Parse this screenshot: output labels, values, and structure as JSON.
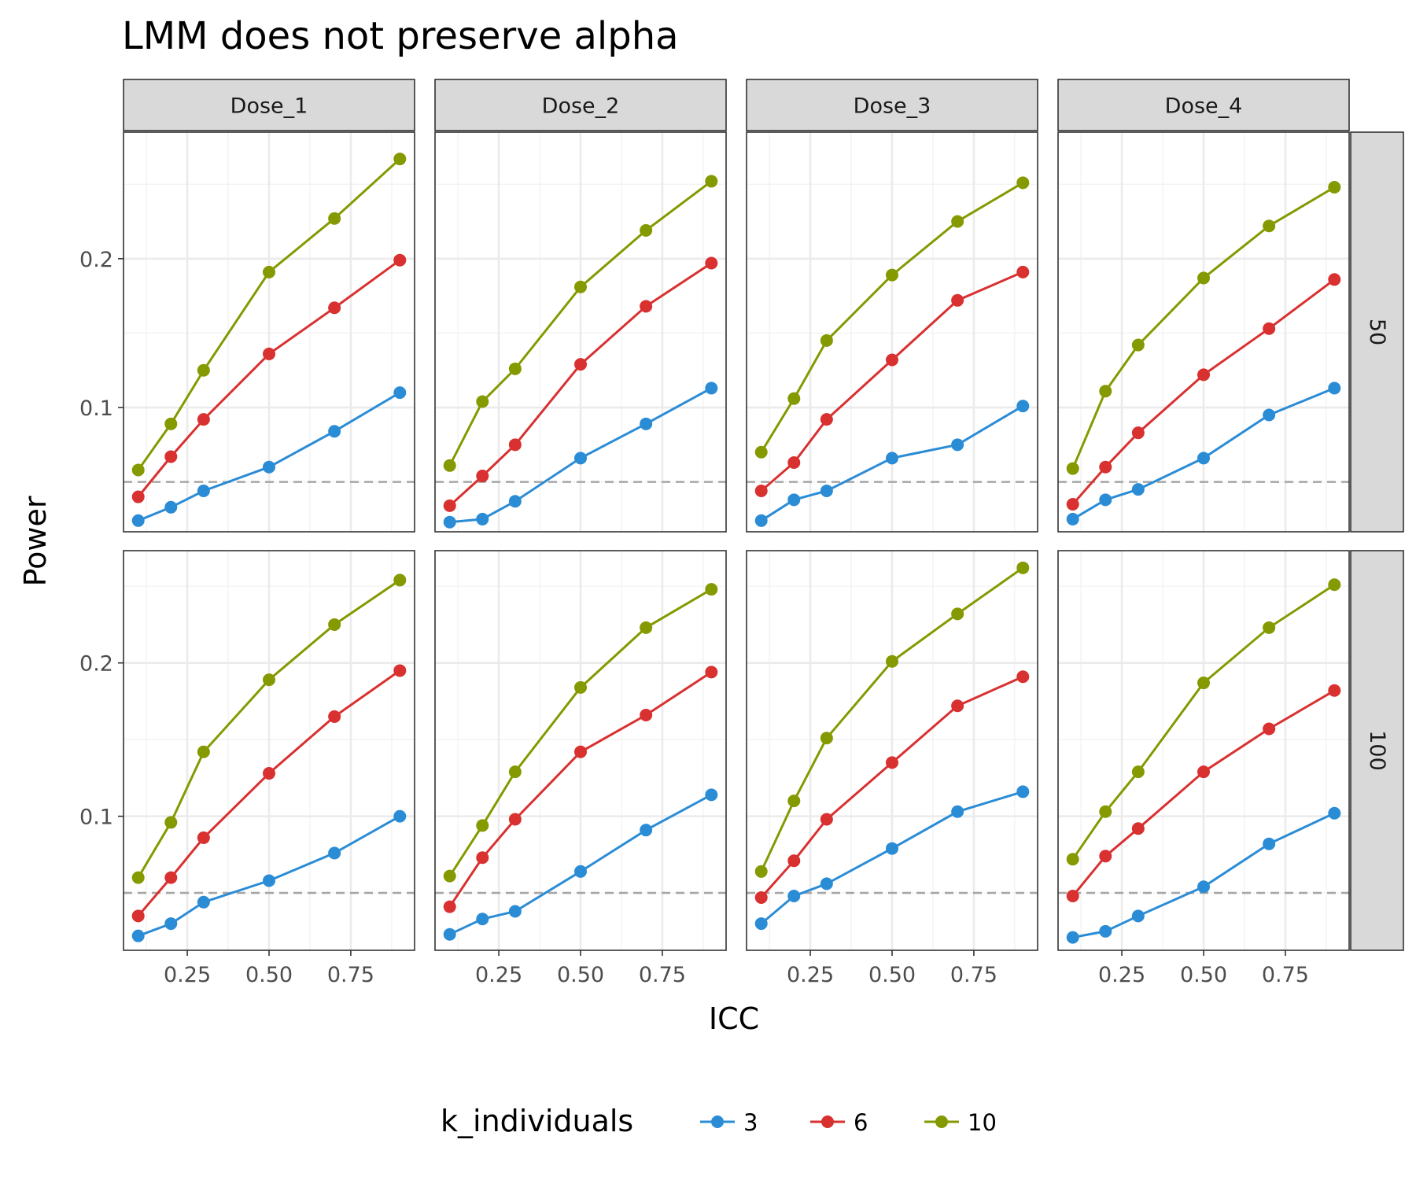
{
  "chart_data": {
    "type": "line",
    "title": "LMM does not preserve alpha",
    "xlabel": "ICC",
    "ylabel": "Power",
    "xlim": [
      0.055,
      0.945
    ],
    "x_ticks": [
      0.25,
      0.5,
      0.75
    ],
    "x_tick_labels": [
      "0.25",
      "0.50",
      "0.75"
    ],
    "y_ticks": [
      0.1,
      0.2
    ],
    "y_tick_labels": [
      "0.1",
      "0.2"
    ],
    "reference_line": {
      "y": 0.05,
      "style": "dashed",
      "color": "#a6a6a6"
    },
    "grid": true,
    "legend": {
      "title": "k_individuals",
      "position": "bottom",
      "entries": [
        "3",
        "6",
        "10"
      ],
      "colors": [
        "#2b8cd6",
        "#d93030",
        "#859900"
      ]
    },
    "x": [
      0.1,
      0.2,
      0.3,
      0.5,
      0.7,
      0.9
    ],
    "column_facets": [
      "Dose_1",
      "Dose_2",
      "Dose_3",
      "Dose_4"
    ],
    "row_facets": [
      "50",
      "100"
    ],
    "row_ylim": [
      [
        0.0165,
        0.285
      ],
      [
        0.0126,
        0.2732
      ]
    ],
    "panels": [
      {
        "row": "50",
        "col": "Dose_1",
        "series": [
          {
            "name": "3",
            "values": [
              0.024,
              0.033,
              0.044,
              0.06,
              0.084,
              0.11
            ]
          },
          {
            "name": "6",
            "values": [
              0.04,
              0.067,
              0.092,
              0.136,
              0.167,
              0.199
            ]
          },
          {
            "name": "10",
            "values": [
              0.058,
              0.089,
              0.125,
              0.191,
              0.227,
              0.267
            ]
          }
        ]
      },
      {
        "row": "50",
        "col": "Dose_2",
        "series": [
          {
            "name": "3",
            "values": [
              0.023,
              0.025,
              0.037,
              0.066,
              0.089,
              0.113
            ]
          },
          {
            "name": "6",
            "values": [
              0.034,
              0.054,
              0.075,
              0.129,
              0.168,
              0.197
            ]
          },
          {
            "name": "10",
            "values": [
              0.061,
              0.104,
              0.126,
              0.181,
              0.219,
              0.252
            ]
          }
        ]
      },
      {
        "row": "50",
        "col": "Dose_3",
        "series": [
          {
            "name": "3",
            "values": [
              0.024,
              0.038,
              0.044,
              0.066,
              0.075,
              0.101
            ]
          },
          {
            "name": "6",
            "values": [
              0.044,
              0.063,
              0.092,
              0.132,
              0.172,
              0.191
            ]
          },
          {
            "name": "10",
            "values": [
              0.07,
              0.106,
              0.145,
              0.189,
              0.225,
              0.251
            ]
          }
        ]
      },
      {
        "row": "50",
        "col": "Dose_4",
        "series": [
          {
            "name": "3",
            "values": [
              0.025,
              0.038,
              0.045,
              0.066,
              0.095,
              0.113
            ]
          },
          {
            "name": "6",
            "values": [
              0.035,
              0.06,
              0.083,
              0.122,
              0.153,
              0.186
            ]
          },
          {
            "name": "10",
            "values": [
              0.059,
              0.111,
              0.142,
              0.187,
              0.222,
              0.248
            ]
          }
        ]
      },
      {
        "row": "100",
        "col": "Dose_1",
        "series": [
          {
            "name": "3",
            "values": [
              0.022,
              0.03,
              0.044,
              0.058,
              0.076,
              0.1
            ]
          },
          {
            "name": "6",
            "values": [
              0.035,
              0.06,
              0.086,
              0.128,
              0.165,
              0.195
            ]
          },
          {
            "name": "10",
            "values": [
              0.06,
              0.096,
              0.142,
              0.189,
              0.225,
              0.254
            ]
          }
        ]
      },
      {
        "row": "100",
        "col": "Dose_2",
        "series": [
          {
            "name": "3",
            "values": [
              0.023,
              0.033,
              0.038,
              0.064,
              0.091,
              0.114
            ]
          },
          {
            "name": "6",
            "values": [
              0.041,
              0.073,
              0.098,
              0.142,
              0.166,
              0.194
            ]
          },
          {
            "name": "10",
            "values": [
              0.061,
              0.094,
              0.129,
              0.184,
              0.223,
              0.248
            ]
          }
        ]
      },
      {
        "row": "100",
        "col": "Dose_3",
        "series": [
          {
            "name": "3",
            "values": [
              0.03,
              0.048,
              0.056,
              0.079,
              0.103,
              0.116
            ]
          },
          {
            "name": "6",
            "values": [
              0.047,
              0.071,
              0.098,
              0.135,
              0.172,
              0.191
            ]
          },
          {
            "name": "10",
            "values": [
              0.064,
              0.11,
              0.151,
              0.201,
              0.232,
              0.262
            ]
          }
        ]
      },
      {
        "row": "100",
        "col": "Dose_4",
        "series": [
          {
            "name": "3",
            "values": [
              0.021,
              0.025,
              0.035,
              0.054,
              0.082,
              0.102
            ]
          },
          {
            "name": "6",
            "values": [
              0.048,
              0.074,
              0.092,
              0.129,
              0.157,
              0.182
            ]
          },
          {
            "name": "10",
            "values": [
              0.072,
              0.103,
              0.129,
              0.187,
              0.223,
              0.251
            ]
          }
        ]
      }
    ]
  }
}
